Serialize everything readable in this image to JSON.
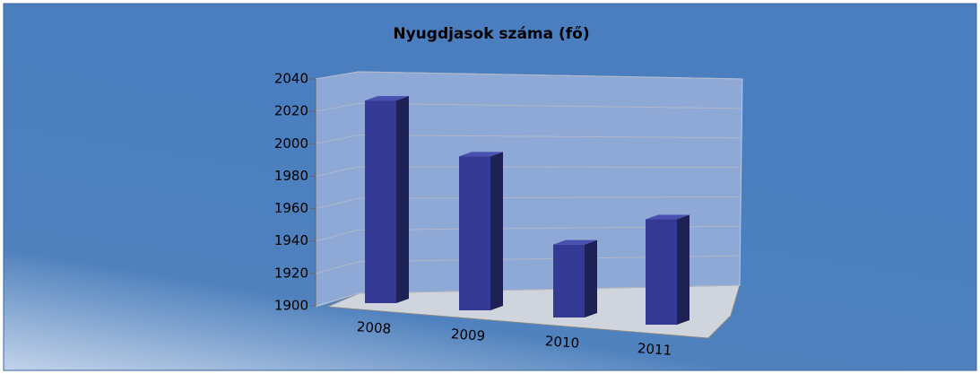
{
  "chart_data": {
    "type": "bar",
    "title": "Nyugdjasok száma (fő)",
    "categories": [
      "2008",
      "2009",
      "2010",
      "2011"
    ],
    "values": [
      2025,
      1995,
      1945,
      1965
    ],
    "color": "#343a94",
    "ylim": [
      1900,
      2040
    ],
    "yticks": [
      1900,
      1920,
      1940,
      1960,
      1980,
      2000,
      2020,
      2040
    ],
    "grid": true
  }
}
